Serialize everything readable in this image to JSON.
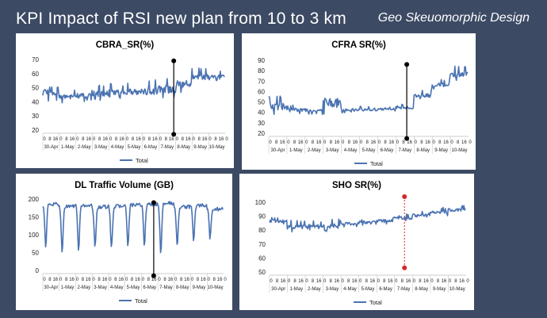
{
  "slide": {
    "title": "KPI Impact of RSI new plan from 10 to 3 km",
    "subtitle": "Geo Skeuomorphic Design"
  },
  "chart_data": [
    {
      "id": "cbra",
      "type": "line",
      "title": "CBRA_SR(%)",
      "ylim": [
        20,
        70
      ],
      "yticks": [
        20,
        30,
        40,
        50,
        60,
        70
      ],
      "days": [
        "30-Apr",
        "1-May",
        "2-May",
        "3-May",
        "4-May",
        "5-May",
        "6-May",
        "7-May",
        "8-May",
        "9-May",
        "10-May"
      ],
      "hour_ticks": [
        "0",
        "8",
        "16"
      ],
      "series": [
        {
          "name": "Total",
          "daily_minimum": [
            40,
            39,
            40,
            41,
            42,
            42,
            41,
            42,
            46,
            53,
            55
          ],
          "daily_peak": [
            58,
            49,
            50,
            52,
            53,
            54,
            56,
            58,
            61,
            64,
            62
          ]
        }
      ],
      "marker": {
        "day_index": 7.9,
        "low": 17,
        "high": 69,
        "color": "#000000",
        "style": "solid"
      },
      "legend": "bottom-center"
    },
    {
      "id": "cfra",
      "type": "line",
      "title": "CFRA SR(%)",
      "ylim": [
        20,
        90
      ],
      "yticks": [
        20,
        30,
        40,
        50,
        60,
        70,
        80,
        90
      ],
      "days": [
        "30-Apr",
        "1-May",
        "2-May",
        "3-May",
        "4-May",
        "5-May",
        "6-May",
        "7-May",
        "8-May",
        "9-May",
        "10-May"
      ],
      "hour_ticks": [
        "0",
        "8",
        "16"
      ],
      "series": [
        {
          "name": "Total",
          "daily_minimum": [
            38,
            38,
            38,
            38,
            39,
            40,
            41,
            42,
            52,
            62,
            70
          ],
          "daily_peak": [
            56,
            48,
            48,
            64,
            47,
            46,
            46,
            48,
            62,
            72,
            85
          ]
        }
      ],
      "marker": {
        "day_index": 7.6,
        "low": 15,
        "high": 86,
        "color": "#000000",
        "style": "solid"
      },
      "legend": "bottom-center"
    },
    {
      "id": "dl",
      "type": "line",
      "title": "DL Traffic Volume (GB)",
      "ylim": [
        0,
        200
      ],
      "yticks": [
        0,
        50,
        100,
        150,
        200
      ],
      "days": [
        "30-Apr",
        "1-May",
        "2-May",
        "3-May",
        "4-May",
        "5-May",
        "6-May",
        "7-May",
        "8-May",
        "9-May",
        "10-May"
      ],
      "hour_ticks": [
        "0",
        "8",
        "16"
      ],
      "series": [
        {
          "name": "Total",
          "daily_minimum": [
            65,
            50,
            55,
            62,
            60,
            65,
            68,
            50,
            70,
            85,
            90
          ],
          "daily_peak": [
            185,
            180,
            182,
            178,
            180,
            183,
            185,
            188,
            178,
            182,
            172
          ]
        }
      ],
      "marker": {
        "day_index": 6.75,
        "low": -15,
        "high": 190,
        "color": "#000000",
        "style": "solid"
      },
      "legend": "bottom-center"
    },
    {
      "id": "sho",
      "type": "line",
      "title": "SHO SR(%)",
      "ylim": [
        50,
        100
      ],
      "yticks": [
        50,
        60,
        70,
        80,
        90,
        100
      ],
      "days": [
        "30-Apr",
        "1-May",
        "2-May",
        "3-May",
        "4-May",
        "5-May",
        "6-May",
        "7-May",
        "8-May",
        "9-May",
        "10-May"
      ],
      "hour_ticks": [
        "0",
        "8",
        "16"
      ],
      "series": [
        {
          "name": "Total",
          "daily_minimum": [
            84,
            78,
            80,
            79,
            82,
            83,
            84,
            86,
            88,
            90,
            92
          ],
          "daily_peak": [
            90,
            88,
            87,
            88,
            88,
            89,
            90,
            92,
            94,
            97,
            98
          ]
        }
      ],
      "marker": {
        "day_index": 7.55,
        "low": 53,
        "high": 104,
        "color": "#d62828",
        "style": "dashed"
      },
      "legend": "bottom-center"
    }
  ]
}
